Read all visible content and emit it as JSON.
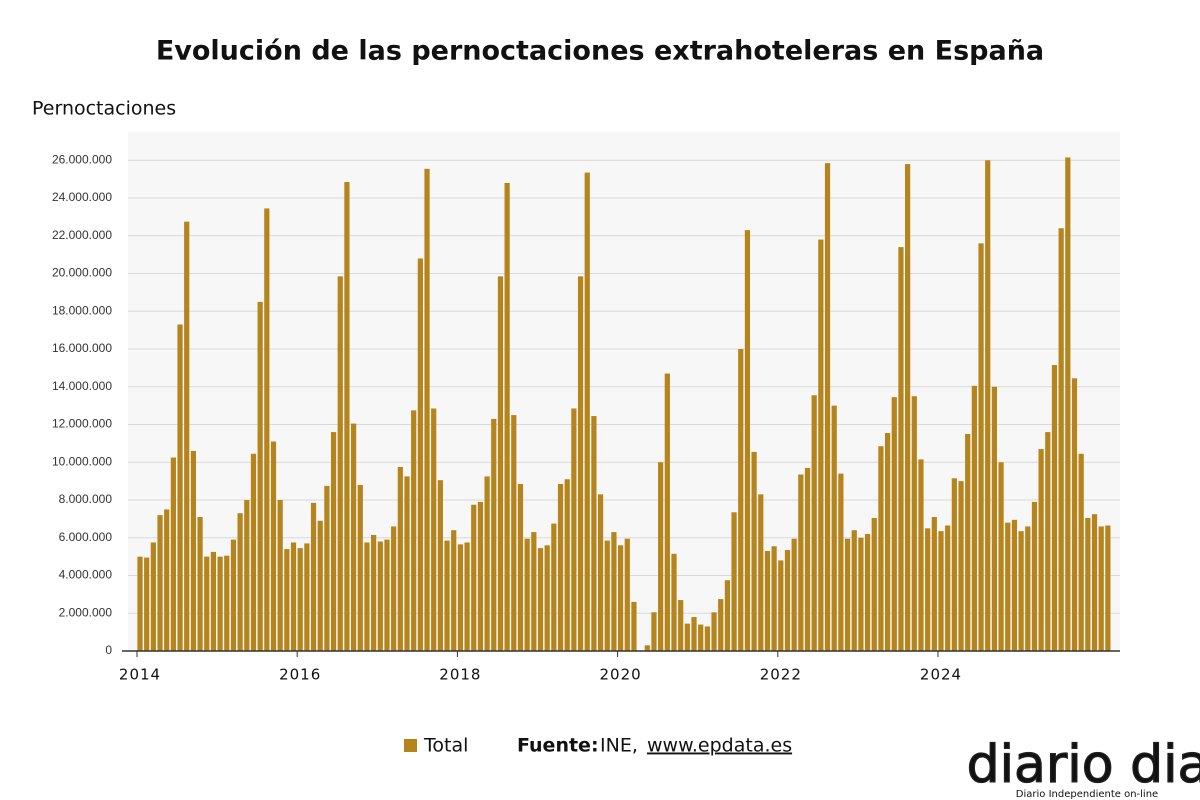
{
  "chart_data": {
    "type": "bar",
    "title": "Evolución de las pernoctaciones extrahoteleras en España",
    "y_label": "Pernoctaciones",
    "categories": [
      "2014",
      null,
      null,
      null,
      null,
      null,
      null,
      null,
      null,
      null,
      null,
      null,
      null,
      null,
      null,
      null,
      null,
      null,
      null,
      null,
      null,
      null,
      null,
      null,
      "2016",
      null,
      null,
      null,
      null,
      null,
      null,
      null,
      null,
      null,
      null,
      null,
      null,
      null,
      null,
      null,
      null,
      null,
      null,
      null,
      null,
      null,
      null,
      null,
      "2018",
      null,
      null,
      null,
      null,
      null,
      null,
      null,
      null,
      null,
      null,
      null,
      null,
      null,
      null,
      null,
      null,
      null,
      null,
      null,
      null,
      null,
      null,
      null,
      "2020",
      null,
      null,
      null,
      null,
      null,
      null,
      null,
      null,
      null,
      null,
      null,
      null,
      null,
      null,
      null,
      null,
      null,
      null,
      null,
      null,
      null,
      null,
      null,
      "2022",
      null,
      null,
      null,
      null,
      null,
      null,
      null,
      null,
      null,
      null,
      null,
      null,
      null,
      null,
      null,
      null,
      null,
      null,
      null,
      null,
      null,
      null,
      null,
      "2024",
      null,
      null,
      null,
      null,
      null,
      null,
      null,
      null,
      null,
      null,
      null,
      null,
      null,
      null,
      null,
      null,
      null,
      null,
      null,
      null,
      null,
      null,
      null,
      null,
      null
    ],
    "series": [
      {
        "name": "Total",
        "color": "#b5841c",
        "values": [
          5000000,
          4950000,
          5750000,
          7200000,
          7500000,
          10250000,
          17300000,
          22750000,
          10600000,
          7100000,
          5000000,
          5250000,
          5000000,
          5050000,
          5900000,
          7300000,
          8000000,
          10450000,
          18500000,
          23450000,
          11100000,
          8000000,
          5400000,
          5750000,
          5450000,
          5700000,
          7850000,
          6900000,
          8750000,
          11600000,
          19850000,
          24850000,
          12050000,
          8800000,
          5750000,
          6150000,
          5800000,
          5900000,
          6600000,
          9750000,
          9250000,
          12750000,
          20800000,
          25550000,
          12850000,
          9050000,
          5850000,
          6400000,
          5650000,
          5750000,
          7750000,
          7900000,
          9250000,
          12300000,
          19850000,
          24800000,
          12500000,
          8850000,
          5950000,
          6300000,
          5450000,
          5600000,
          6750000,
          8850000,
          9100000,
          12850000,
          19850000,
          25350000,
          12450000,
          8300000,
          5850000,
          6300000,
          5600000,
          5950000,
          2600000,
          0,
          300000,
          2050000,
          10000000,
          14700000,
          5150000,
          2700000,
          1450000,
          1800000,
          1400000,
          1300000,
          2050000,
          2750000,
          3750000,
          7350000,
          16000000,
          22300000,
          10550000,
          8300000,
          5300000,
          5550000,
          4800000,
          5350000,
          5950000,
          9350000,
          9700000,
          13550000,
          21800000,
          25850000,
          13000000,
          9400000,
          5950000,
          6400000,
          6000000,
          6200000,
          7050000,
          10850000,
          11550000,
          13450000,
          21400000,
          25800000,
          13500000,
          10150000,
          6500000,
          7100000,
          6350000,
          6650000,
          9150000,
          9000000,
          11500000,
          14050000,
          21600000,
          26000000,
          14000000,
          10000000,
          6800000,
          6950000,
          6350000,
          6600000,
          7900000,
          10700000,
          11600000,
          15150000,
          22400000,
          26150000,
          14450000,
          10450000,
          7050000,
          7250000,
          6600000,
          6650000
        ]
      }
    ],
    "ylim": [
      0,
      27500000
    ],
    "yticks": [
      0,
      {
        "value": 2000000,
        "label": "2.000.000"
      },
      {
        "value": 4000000,
        "label": "4.000.000"
      },
      {
        "value": 6000000,
        "label": "6.000.000"
      },
      {
        "value": 8000000,
        "label": "8.000.000"
      },
      {
        "value": 10000000,
        "label": "10.000.000"
      },
      {
        "value": 12000000,
        "label": "12.000.000"
      },
      {
        "value": 14000000,
        "label": "14.000.000"
      },
      {
        "value": 16000000,
        "label": "16.000.000"
      },
      {
        "value": 18000000,
        "label": "18.000.000"
      },
      {
        "value": 20000000,
        "label": "20.000.000"
      },
      {
        "value": 22000000,
        "label": "22.000.000"
      },
      {
        "value": 24000000,
        "label": "24.000.000"
      },
      {
        "value": 26000000,
        "label": "26.000.000"
      }
    ],
    "grid": true,
    "source": {
      "label": "Fuente:",
      "text": "INE,",
      "link": "www.epdata.es"
    },
    "logo": {
      "name": "diario dia",
      "tagline": "Diario Independiente on-line"
    }
  }
}
